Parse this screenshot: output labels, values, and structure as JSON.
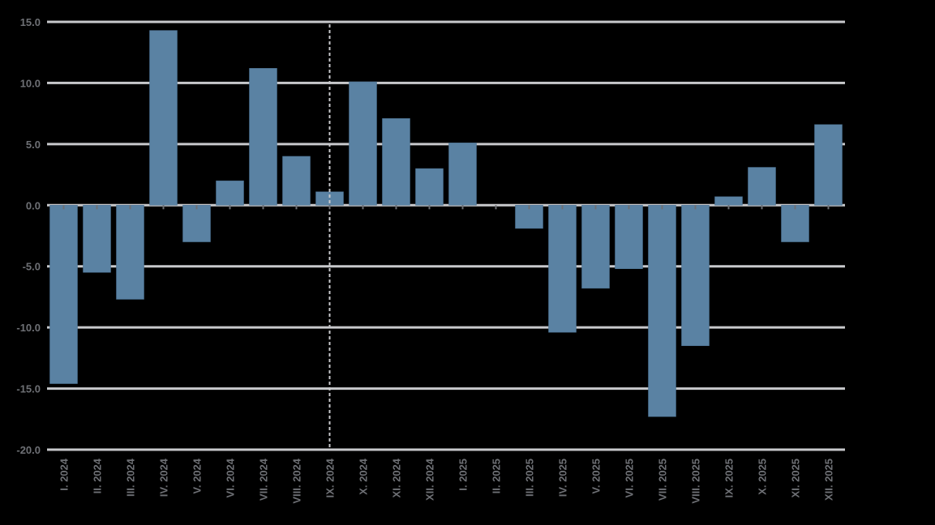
{
  "chart_data": {
    "type": "bar",
    "title": "",
    "xlabel": "",
    "ylabel": "",
    "ylim": [
      -20.0,
      15.0
    ],
    "yticks": [
      "15.0",
      "10.0",
      "5.0",
      "0.0",
      "-5.0",
      "-10.0",
      "-15.0",
      "-20.0"
    ],
    "ytick_values": [
      15,
      10,
      5,
      0,
      -5,
      -10,
      -15,
      -20
    ],
    "grid": true,
    "legend": null,
    "categories": [
      "I. 2024",
      "II. 2024",
      "III. 2024",
      "IV. 2024",
      "V. 2024",
      "VI. 2024",
      "VII. 2024",
      "VIII. 2024",
      "IX. 2024",
      "X. 2024",
      "XI. 2024",
      "XII. 2024",
      "I. 2025",
      "II. 2025",
      "III. 2025",
      "IV. 2025",
      "V. 2025",
      "VI. 2025",
      "VII. 2025",
      "VIII. 2025",
      "IX. 2025",
      "X. 2025",
      "XI. 2025",
      "XII. 2025"
    ],
    "values": [
      -14.6,
      -5.5,
      -7.7,
      14.3,
      -3.0,
      2.0,
      11.2,
      4.0,
      1.1,
      10.1,
      7.1,
      3.0,
      5.1,
      0.0,
      -1.9,
      -10.4,
      -6.8,
      -5.2,
      -17.3,
      -11.5,
      0.7,
      3.1,
      -3.0,
      6.6
    ],
    "annotations": [
      {
        "type": "vertical-dashed-line",
        "at_category": "IX. 2024"
      }
    ],
    "colors": {
      "bar": "#5a82a3",
      "grid": "#c8c9cc",
      "tick_text": "#6e7075",
      "background": "#000000"
    }
  }
}
